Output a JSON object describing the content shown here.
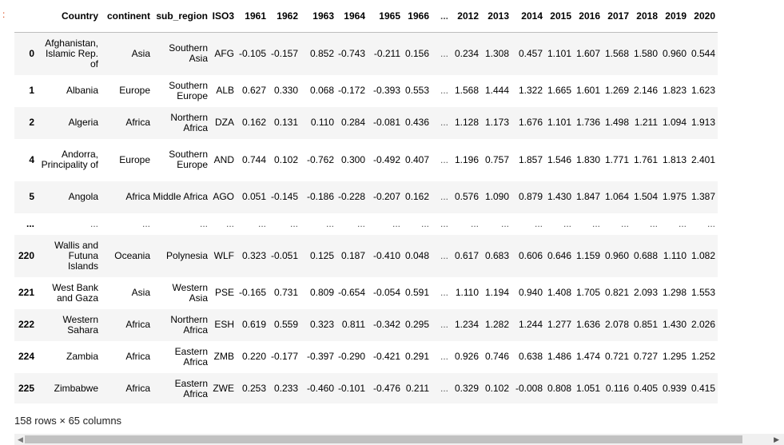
{
  "prompt_marker": ":",
  "columns": [
    "",
    "Country",
    "continent",
    "sub_region",
    "ISO3",
    "1961",
    "1962",
    "1963",
    "1964",
    "1965",
    "1966",
    "...",
    "2012",
    "2013",
    "2014",
    "2015",
    "2016",
    "2017",
    "2018",
    "2019",
    "2020"
  ],
  "rows": [
    {
      "idx": "0",
      "cells": [
        "Afghanistan, Islamic Rep. of",
        "Asia",
        "Southern Asia",
        "AFG",
        "-0.105",
        "-0.157",
        "0.852",
        "-0.743",
        "-0.211",
        "0.156",
        "...",
        "0.234",
        "1.308",
        "0.457",
        "1.101",
        "1.607",
        "1.568",
        "1.580",
        "0.960",
        "0.544"
      ]
    },
    {
      "idx": "1",
      "cells": [
        "Albania",
        "Europe",
        "Southern Europe",
        "ALB",
        "0.627",
        "0.330",
        "0.068",
        "-0.172",
        "-0.393",
        "0.553",
        "...",
        "1.568",
        "1.444",
        "1.322",
        "1.665",
        "1.601",
        "1.269",
        "2.146",
        "1.823",
        "1.623"
      ]
    },
    {
      "idx": "2",
      "cells": [
        "Algeria",
        "Africa",
        "Northern Africa",
        "DZA",
        "0.162",
        "0.131",
        "0.110",
        "0.284",
        "-0.081",
        "0.436",
        "...",
        "1.128",
        "1.173",
        "1.676",
        "1.101",
        "1.736",
        "1.498",
        "1.211",
        "1.094",
        "1.913"
      ]
    },
    {
      "idx": "4",
      "cells": [
        "Andorra, Principality of",
        "Europe",
        "Southern Europe",
        "AND",
        "0.744",
        "0.102",
        "-0.762",
        "0.300",
        "-0.492",
        "0.407",
        "...",
        "1.196",
        "0.757",
        "1.857",
        "1.546",
        "1.830",
        "1.771",
        "1.761",
        "1.813",
        "2.401"
      ]
    },
    {
      "idx": "5",
      "cells": [
        "Angola",
        "Africa",
        "Middle Africa",
        "AGO",
        "0.051",
        "-0.145",
        "-0.186",
        "-0.228",
        "-0.207",
        "0.162",
        "...",
        "0.576",
        "1.090",
        "0.879",
        "1.430",
        "1.847",
        "1.064",
        "1.504",
        "1.975",
        "1.387"
      ]
    },
    {
      "idx": "...",
      "cells": [
        "...",
        "...",
        "...",
        "...",
        "...",
        "...",
        "...",
        "...",
        "...",
        "...",
        "...",
        "...",
        "...",
        "...",
        "...",
        "...",
        "...",
        "...",
        "...",
        "..."
      ]
    },
    {
      "idx": "220",
      "cells": [
        "Wallis and Futuna Islands",
        "Oceania",
        "Polynesia",
        "WLF",
        "0.323",
        "-0.051",
        "0.125",
        "0.187",
        "-0.410",
        "0.048",
        "...",
        "0.617",
        "0.683",
        "0.606",
        "0.646",
        "1.159",
        "0.960",
        "0.688",
        "1.110",
        "1.082"
      ]
    },
    {
      "idx": "221",
      "cells": [
        "West Bank and Gaza",
        "Asia",
        "Western Asia",
        "PSE",
        "-0.165",
        "0.731",
        "0.809",
        "-0.654",
        "-0.054",
        "0.591",
        "...",
        "1.110",
        "1.194",
        "0.940",
        "1.408",
        "1.705",
        "0.821",
        "2.093",
        "1.298",
        "1.553"
      ]
    },
    {
      "idx": "222",
      "cells": [
        "Western Sahara",
        "Africa",
        "Northern Africa",
        "ESH",
        "0.619",
        "0.559",
        "0.323",
        "0.811",
        "-0.342",
        "0.295",
        "...",
        "1.234",
        "1.282",
        "1.244",
        "1.277",
        "1.636",
        "2.078",
        "0.851",
        "1.430",
        "2.026"
      ]
    },
    {
      "idx": "224",
      "cells": [
        "Zambia",
        "Africa",
        "Eastern Africa",
        "ZMB",
        "0.220",
        "-0.177",
        "-0.397",
        "-0.290",
        "-0.421",
        "0.291",
        "...",
        "0.926",
        "0.746",
        "0.638",
        "1.486",
        "1.474",
        "0.721",
        "0.727",
        "1.295",
        "1.252"
      ]
    },
    {
      "idx": "225",
      "cells": [
        "Zimbabwe",
        "Africa",
        "Eastern Africa",
        "ZWE",
        "0.253",
        "0.233",
        "-0.460",
        "-0.101",
        "-0.476",
        "0.211",
        "...",
        "0.329",
        "0.102",
        "-0.008",
        "0.808",
        "1.051",
        "0.116",
        "0.405",
        "0.939",
        "0.415"
      ]
    }
  ],
  "summary": "158 rows × 65 columns",
  "scrollbar": {
    "left_arrow": "◀",
    "right_arrow": "▶"
  }
}
